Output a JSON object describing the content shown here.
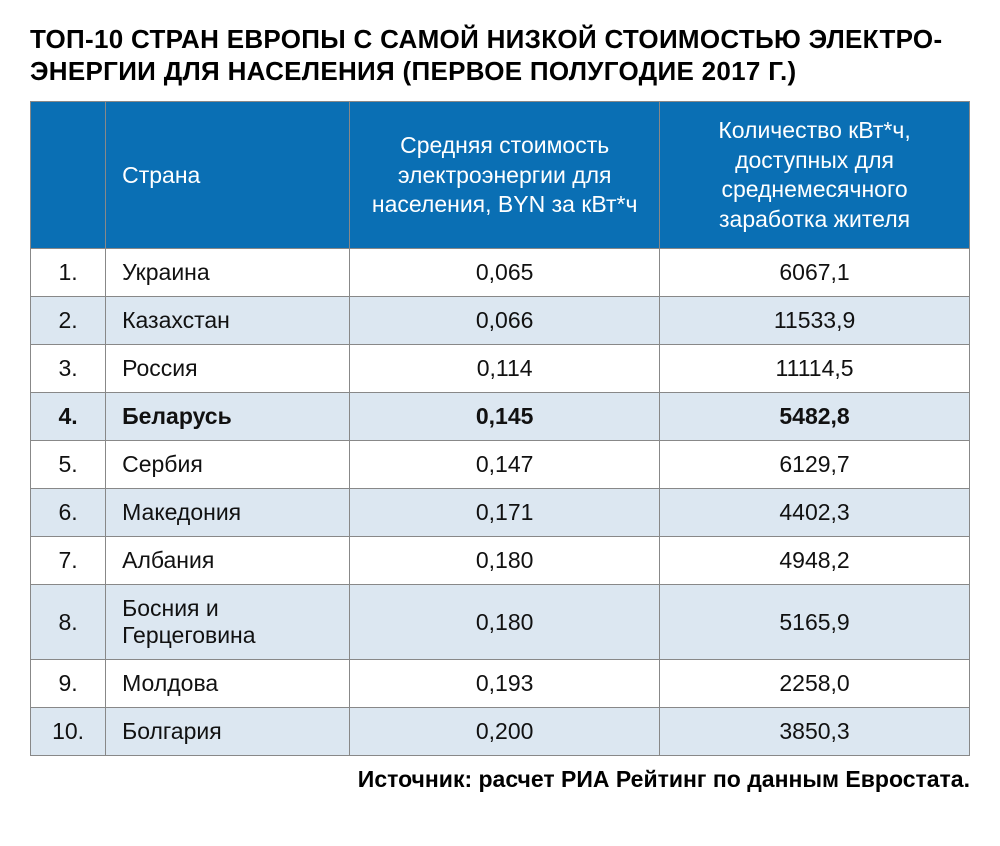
{
  "title_line1": "ТОП-10 СТРАН ЕВРОПЫ С САМОЙ НИЗКОЙ СТОИМОСТЬЮ ЭЛЕКТРО-",
  "title_line2": "ЭНЕРГИИ ДЛЯ НАСЕЛЕНИЯ (ПЕРВОЕ ПОЛУГОДИЕ 2017 Г.)",
  "table": {
    "type": "table",
    "header_bg_color": "#0a6fb4",
    "header_text_color": "#ffffff",
    "row_odd_bg_color": "#ffffff",
    "row_even_bg_color": "#dce7f1",
    "border_color": "#888888",
    "text_color": "#111111",
    "header_fontsize": 23,
    "cell_fontsize": 23,
    "col_widths_pct": [
      8,
      26,
      33,
      33
    ],
    "highlight_row_index": 3,
    "columns": [
      "",
      "Страна",
      "Средняя стоимость электроэнергии для населения, BYN за кВт*ч",
      "Количество кВт*ч, доступных для среднемесячного заработка жителя"
    ],
    "rows": [
      {
        "rank": "1.",
        "country": "Украина",
        "cost": "0,065",
        "kwh": "6067,1"
      },
      {
        "rank": "2.",
        "country": "Казахстан",
        "cost": "0,066",
        "kwh": "11533,9"
      },
      {
        "rank": "3.",
        "country": "Россия",
        "cost": "0,114",
        "kwh": "11114,5"
      },
      {
        "rank": "4.",
        "country": "Беларусь",
        "cost": "0,145",
        "kwh": "5482,8"
      },
      {
        "rank": "5.",
        "country": "Сербия",
        "cost": "0,147",
        "kwh": "6129,7"
      },
      {
        "rank": "6.",
        "country": "Македония",
        "cost": "0,171",
        "kwh": "4402,3"
      },
      {
        "rank": "7.",
        "country": "Албания",
        "cost": "0,180",
        "kwh": "4948,2"
      },
      {
        "rank": "8.",
        "country": "Босния и Герцеговина",
        "cost": "0,180",
        "kwh": "5165,9"
      },
      {
        "rank": "9.",
        "country": "Молдова",
        "cost": "0,193",
        "kwh": "2258,0"
      },
      {
        "rank": "10.",
        "country": "Болгария",
        "cost": "0,200",
        "kwh": "3850,3"
      }
    ]
  },
  "source_text": "Источник: расчет РИА Рейтинг по данным Евростата."
}
